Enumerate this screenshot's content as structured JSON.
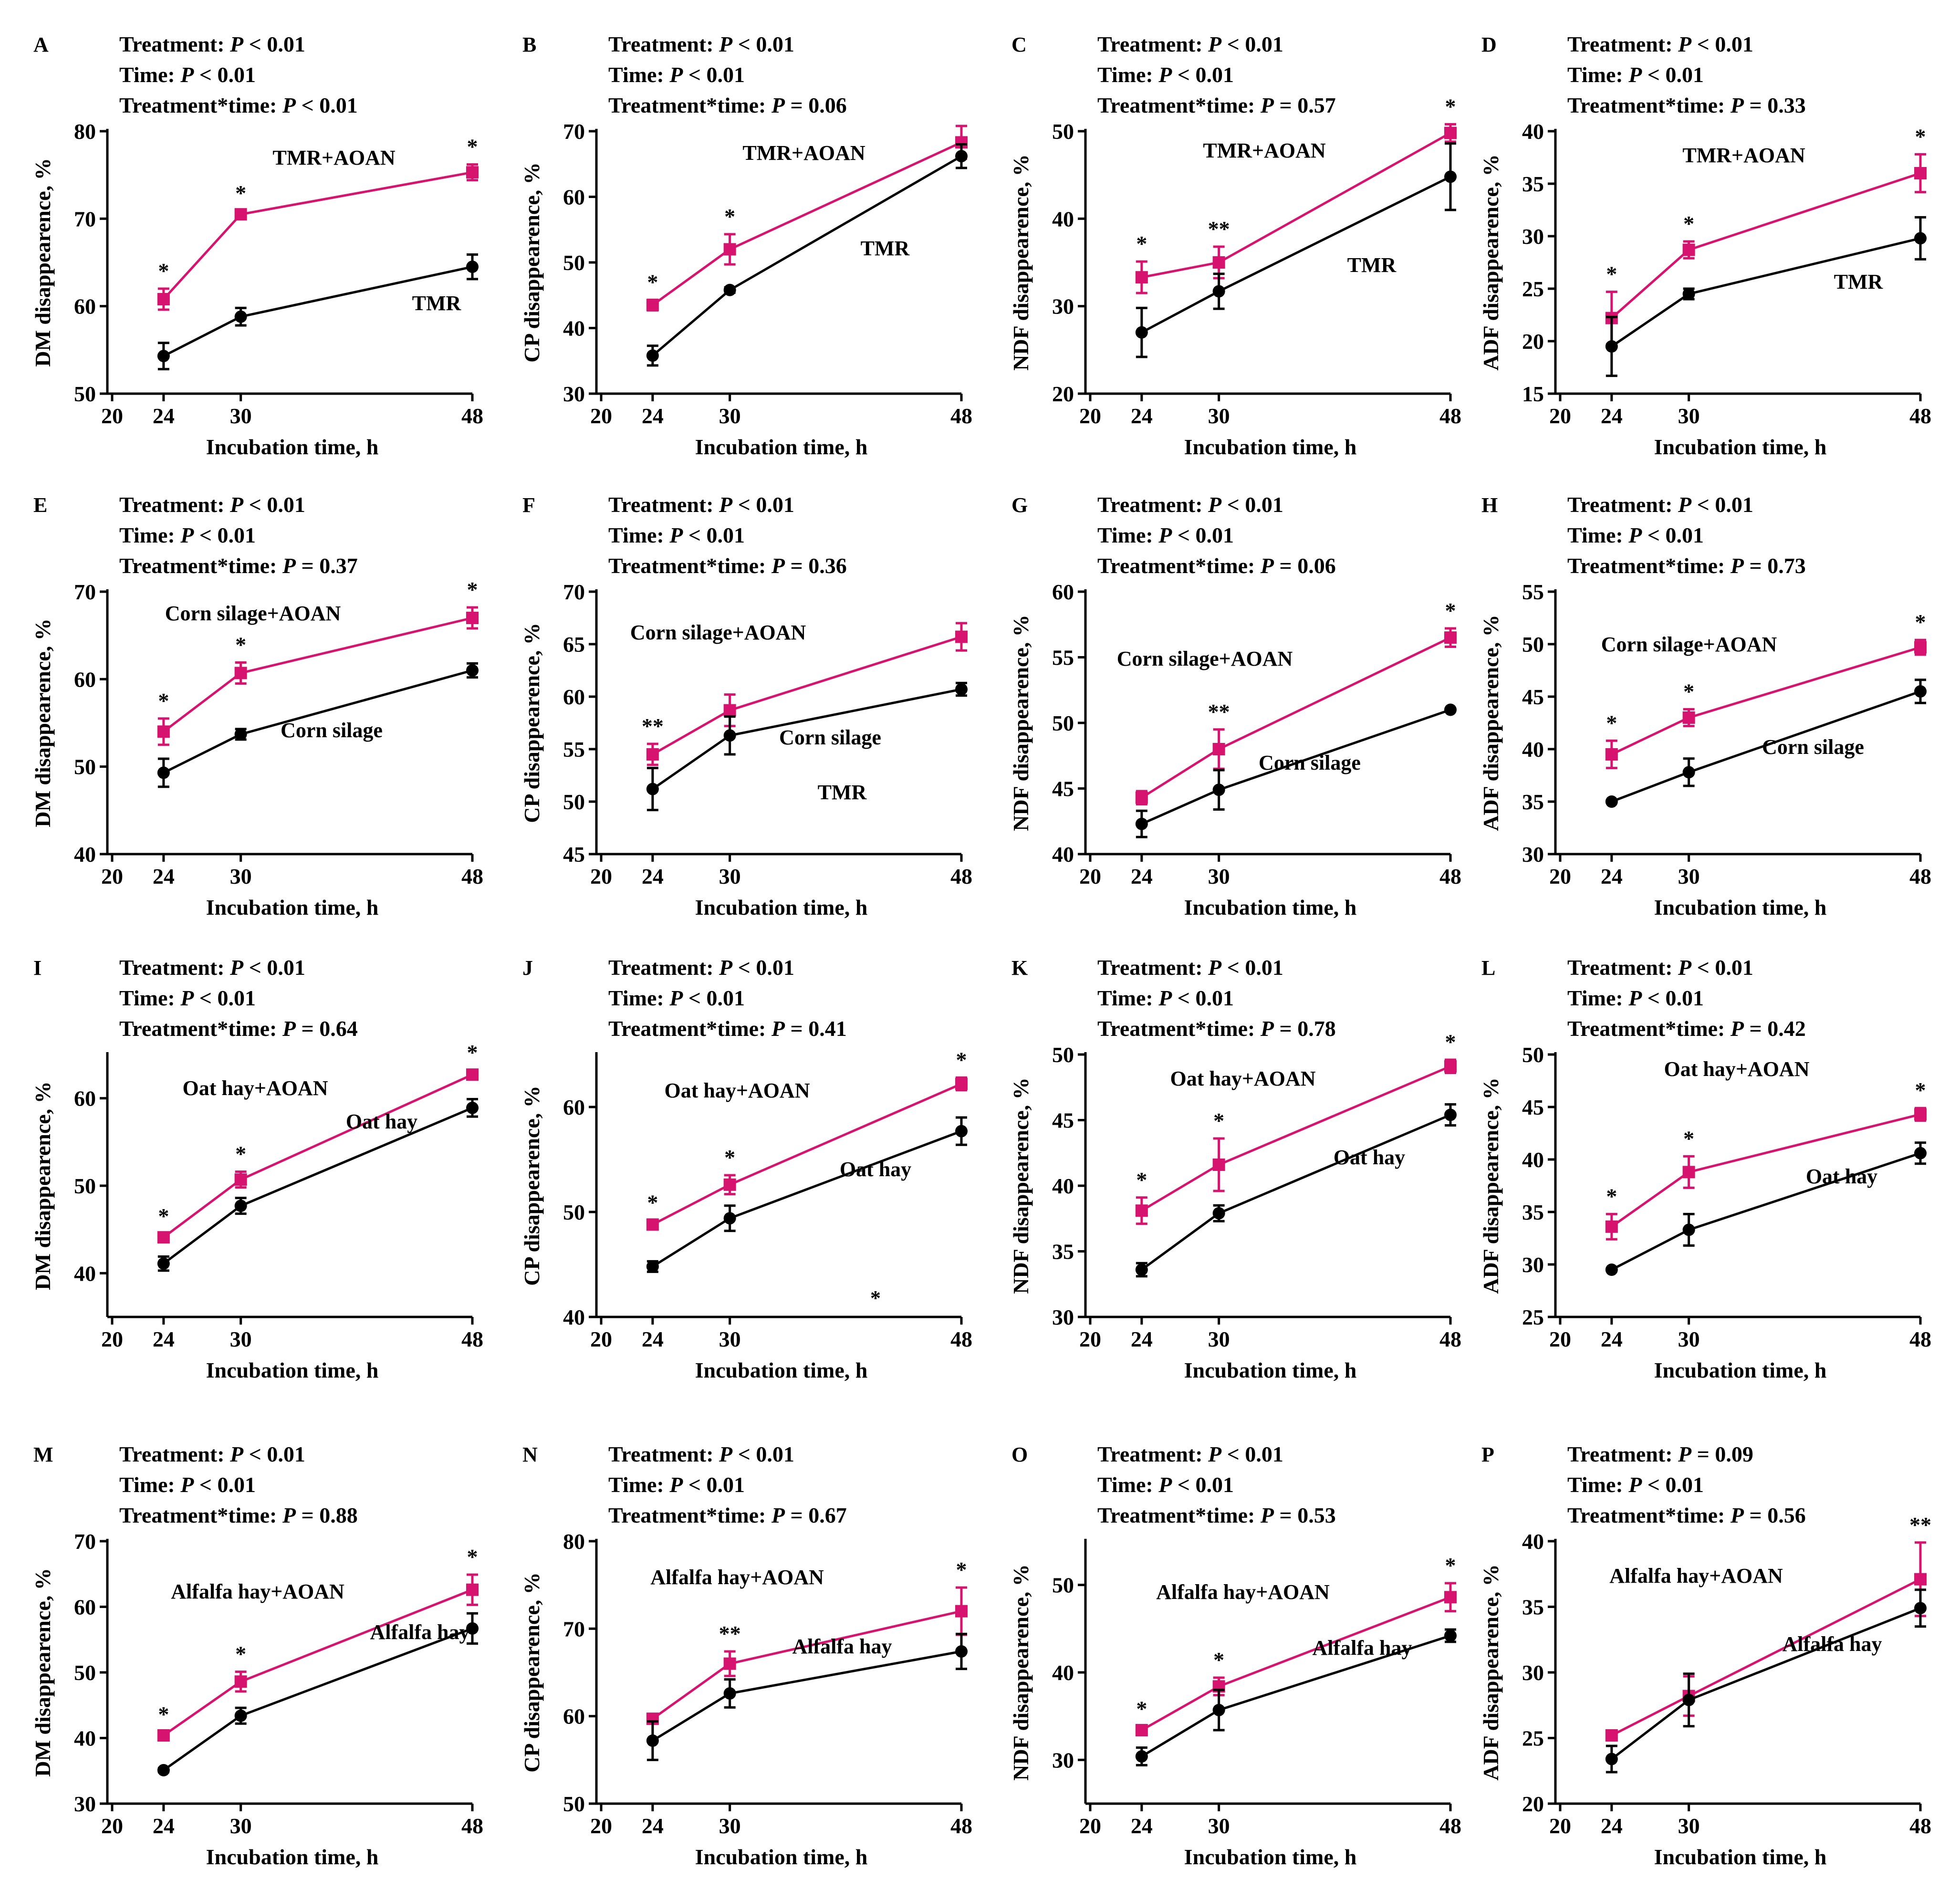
{
  "figure": {
    "x_label": "Incubation time, h",
    "stats_labels": {
      "treatment": "Treatment: ",
      "time": "Time: ",
      "interaction": "Treatment*time: "
    },
    "colors": {
      "aoan": "#d6136e",
      "control": "#000000"
    }
  },
  "chart_data": [
    {
      "letter": "A",
      "type": "line",
      "ylabel": "DM disappearence, %",
      "ylim": [
        50,
        80
      ],
      "yticks": [
        50,
        60,
        70,
        80
      ],
      "xlim": [
        20,
        48
      ],
      "xticks": [
        20,
        24,
        30,
        48
      ],
      "x": [
        24,
        30,
        48
      ],
      "stats": {
        "treatment": "P < 0.01",
        "time": "P < 0.01",
        "interaction": "P < 0.01"
      },
      "series": [
        {
          "name": "TMR+AOAN",
          "values": [
            60.8,
            70.5,
            75.3
          ],
          "err": [
            1.2,
            0.4,
            0.9
          ],
          "sig": [
            "*",
            "*",
            "*"
          ]
        },
        {
          "name": "TMR",
          "values": [
            54.3,
            58.8,
            64.5
          ],
          "err": [
            1.5,
            1.0,
            1.4
          ]
        }
      ]
    },
    {
      "letter": "B",
      "type": "line",
      "ylabel": "CP disappearence, %",
      "ylim": [
        30,
        70
      ],
      "yticks": [
        30,
        40,
        50,
        60,
        70
      ],
      "xlim": [
        20,
        48
      ],
      "xticks": [
        20,
        24,
        30,
        48
      ],
      "x": [
        24,
        30,
        48
      ],
      "stats": {
        "treatment": "P < 0.01",
        "time": "P < 0.01",
        "interaction": "P = 0.06"
      },
      "series": [
        {
          "name": "TMR+AOAN",
          "values": [
            43.5,
            52.0,
            68.3
          ],
          "err": [
            0.8,
            2.3,
            2.5
          ],
          "sig": [
            "*",
            "*",
            ""
          ]
        },
        {
          "name": "TMR",
          "values": [
            35.8,
            45.8,
            66.2
          ],
          "err": [
            1.5,
            0.4,
            1.8
          ]
        }
      ]
    },
    {
      "letter": "C",
      "type": "line",
      "ylabel": "NDF disappearence, %",
      "ylim": [
        20,
        50
      ],
      "yticks": [
        20,
        30,
        40,
        50
      ],
      "xlim": [
        20,
        48
      ],
      "xticks": [
        20,
        24,
        30,
        48
      ],
      "x": [
        24,
        30,
        48
      ],
      "stats": {
        "treatment": "P < 0.01",
        "time": "P < 0.01",
        "interaction": "P = 0.57"
      },
      "series": [
        {
          "name": "TMR+AOAN",
          "values": [
            33.3,
            35.0,
            49.8
          ],
          "err": [
            1.8,
            1.8,
            1.0
          ],
          "sig": [
            "*",
            "**",
            "*"
          ]
        },
        {
          "name": "TMR",
          "values": [
            27.0,
            31.7,
            44.8
          ],
          "err": [
            2.8,
            2.0,
            3.8
          ]
        }
      ]
    },
    {
      "letter": "D",
      "type": "line",
      "ylabel": "ADF disappearence, %",
      "ylim": [
        15,
        40
      ],
      "yticks": [
        15,
        20,
        25,
        30,
        35,
        40
      ],
      "xlim": [
        20,
        48
      ],
      "xticks": [
        20,
        24,
        30,
        48
      ],
      "x": [
        24,
        30,
        48
      ],
      "stats": {
        "treatment": "P < 0.01",
        "time": "P < 0.01",
        "interaction": "P = 0.33"
      },
      "series": [
        {
          "name": "TMR+AOAN",
          "values": [
            22.2,
            28.7,
            36.0
          ],
          "err": [
            2.5,
            0.8,
            1.8
          ],
          "sig": [
            "*",
            "*",
            "*"
          ]
        },
        {
          "name": "TMR",
          "values": [
            19.5,
            24.5,
            29.8
          ],
          "err": [
            2.8,
            0.5,
            2.0
          ]
        }
      ]
    },
    {
      "letter": "E",
      "type": "line",
      "ylabel": "DM disappearence, %",
      "ylim": [
        40,
        70
      ],
      "yticks": [
        40,
        50,
        60,
        70
      ],
      "xlim": [
        20,
        48
      ],
      "xticks": [
        20,
        24,
        30,
        48
      ],
      "x": [
        24,
        30,
        48
      ],
      "stats": {
        "treatment": "P < 0.01",
        "time": "P < 0.01",
        "interaction": "P = 0.37"
      },
      "series": [
        {
          "name": "Corn silage+AOAN",
          "values": [
            54.0,
            60.7,
            67.0
          ],
          "err": [
            1.5,
            1.2,
            1.2
          ],
          "sig": [
            "*",
            "*",
            "*"
          ]
        },
        {
          "name": "Corn silage",
          "values": [
            49.3,
            53.7,
            61.0
          ],
          "err": [
            1.6,
            0.6,
            0.8
          ]
        }
      ]
    },
    {
      "letter": "F",
      "type": "line",
      "ylabel": "CP disappearence, %",
      "ylim": [
        45,
        70
      ],
      "yticks": [
        45,
        50,
        55,
        60,
        65,
        70
      ],
      "xlim": [
        20,
        48
      ],
      "xticks": [
        20,
        24,
        30,
        48
      ],
      "x": [
        24,
        30,
        48
      ],
      "stats": {
        "treatment": "P < 0.01",
        "time": "P < 0.01",
        "interaction": "P = 0.36"
      },
      "series": [
        {
          "name": "Corn silage+AOAN",
          "values": [
            54.5,
            58.7,
            65.7
          ],
          "err": [
            1.0,
            1.5,
            1.3
          ],
          "sig": [
            "**",
            "",
            ""
          ]
        },
        {
          "name": "Corn silage",
          "values": [
            51.2,
            56.3,
            60.7
          ],
          "err": [
            2.0,
            1.8,
            0.6
          ]
        }
      ]
    },
    {
      "letter": "G",
      "type": "line",
      "ylabel": "NDF disappearence, %",
      "ylim": [
        40,
        60
      ],
      "yticks": [
        40,
        45,
        50,
        55,
        60
      ],
      "xlim": [
        20,
        48
      ],
      "xticks": [
        20,
        24,
        30,
        48
      ],
      "x": [
        24,
        30,
        48
      ],
      "stats": {
        "treatment": "P < 0.01",
        "time": "P < 0.01",
        "interaction": "P = 0.06"
      },
      "series": [
        {
          "name": "Corn silage+AOAN",
          "values": [
            44.3,
            48.0,
            56.5
          ],
          "err": [
            0.5,
            1.5,
            0.7
          ],
          "sig": [
            "",
            "**",
            "*"
          ]
        },
        {
          "name": "Corn silage",
          "values": [
            42.3,
            44.9,
            51.0
          ],
          "err": [
            1.0,
            1.5,
            0.1
          ]
        }
      ]
    },
    {
      "letter": "H",
      "type": "line",
      "ylabel": "ADF disappearence, %",
      "ylim": [
        30,
        55
      ],
      "yticks": [
        30,
        35,
        40,
        45,
        50,
        55
      ],
      "xlim": [
        20,
        48
      ],
      "xticks": [
        20,
        24,
        30,
        48
      ],
      "x": [
        24,
        30,
        48
      ],
      "stats": {
        "treatment": "P < 0.01",
        "time": "P < 0.01",
        "interaction": "P = 0.73"
      },
      "series": [
        {
          "name": "Corn silage+AOAN",
          "values": [
            39.5,
            43.0,
            49.7
          ],
          "err": [
            1.3,
            0.8,
            0.7
          ],
          "sig": [
            "*",
            "*",
            "*"
          ]
        },
        {
          "name": "Corn silage",
          "values": [
            35.0,
            37.8,
            45.5
          ],
          "err": [
            0.1,
            1.3,
            1.1
          ]
        }
      ]
    },
    {
      "letter": "I",
      "type": "line",
      "ylabel": "DM disappearence, %",
      "ylim": [
        35,
        65
      ],
      "yticks": [
        40,
        50,
        60
      ],
      "xlim": [
        20,
        48
      ],
      "xticks": [
        20,
        24,
        30,
        48
      ],
      "x": [
        24,
        30,
        48
      ],
      "stats": {
        "treatment": "P < 0.01",
        "time": "P < 0.01",
        "interaction": "P = 0.64"
      },
      "series": [
        {
          "name": "Oat hay+AOAN",
          "values": [
            44.1,
            50.7,
            62.7
          ],
          "err": [
            0.4,
            0.9,
            0.5
          ],
          "sig": [
            "*",
            "*",
            "*"
          ]
        },
        {
          "name": "Oat hay",
          "values": [
            41.1,
            47.7,
            58.9
          ],
          "err": [
            0.8,
            0.9,
            1.0
          ]
        }
      ]
    },
    {
      "letter": "J",
      "type": "line",
      "ylabel": "CP disappearence, %",
      "ylim": [
        40,
        65
      ],
      "yticks": [
        40,
        50,
        60
      ],
      "xlim": [
        20,
        48
      ],
      "xticks": [
        20,
        24,
        30,
        48
      ],
      "x": [
        24,
        30,
        48
      ],
      "stats": {
        "treatment": "P < 0.01",
        "time": "P < 0.01",
        "interaction": "P = 0.41"
      },
      "series": [
        {
          "name": "Oat hay+AOAN",
          "values": [
            48.8,
            52.6,
            62.2
          ],
          "err": [
            0.4,
            0.9,
            0.6
          ],
          "sig": [
            "*",
            "*",
            "*"
          ]
        },
        {
          "name": "Oat hay",
          "values": [
            44.8,
            49.4,
            57.7
          ],
          "err": [
            0.5,
            1.2,
            1.3
          ]
        }
      ]
    },
    {
      "letter": "K",
      "type": "line",
      "ylabel": "NDF disappearence, %",
      "ylim": [
        30,
        50
      ],
      "yticks": [
        30,
        35,
        40,
        45,
        50
      ],
      "xlim": [
        20,
        48
      ],
      "xticks": [
        20,
        24,
        30,
        48
      ],
      "x": [
        24,
        30,
        48
      ],
      "stats": {
        "treatment": "P < 0.01",
        "time": "P < 0.01",
        "interaction": "P = 0.78"
      },
      "series": [
        {
          "name": "Oat hay+AOAN",
          "values": [
            38.1,
            41.6,
            49.1
          ],
          "err": [
            1.0,
            2.0,
            0.5
          ],
          "sig": [
            "*",
            "*",
            "*"
          ]
        },
        {
          "name": "Oat hay",
          "values": [
            33.6,
            37.9,
            45.4
          ],
          "err": [
            0.5,
            0.6,
            0.8
          ]
        }
      ]
    },
    {
      "letter": "L",
      "type": "line",
      "ylabel": "ADF disappearence, %",
      "ylim": [
        25,
        50
      ],
      "yticks": [
        25,
        30,
        35,
        40,
        45,
        50
      ],
      "xlim": [
        20,
        48
      ],
      "xticks": [
        20,
        24,
        30,
        48
      ],
      "x": [
        24,
        30,
        48
      ],
      "stats": {
        "treatment": "P < 0.01",
        "time": "P < 0.01",
        "interaction": "P = 0.42"
      },
      "series": [
        {
          "name": "Oat hay+AOAN",
          "values": [
            33.6,
            38.8,
            44.3
          ],
          "err": [
            1.2,
            1.5,
            0.6
          ],
          "sig": [
            "*",
            "*",
            "*"
          ]
        },
        {
          "name": "Oat hay",
          "values": [
            29.5,
            33.3,
            40.6
          ],
          "err": [
            0.1,
            1.5,
            1.0
          ]
        }
      ]
    },
    {
      "letter": "M",
      "type": "line",
      "ylabel": "DM disappearence, %",
      "ylim": [
        30,
        70
      ],
      "yticks": [
        30,
        40,
        50,
        60,
        70
      ],
      "xlim": [
        20,
        48
      ],
      "xticks": [
        20,
        24,
        30,
        48
      ],
      "x": [
        24,
        30,
        48
      ],
      "stats": {
        "treatment": "P < 0.01",
        "time": "P < 0.01",
        "interaction": "P = 0.88"
      },
      "series": [
        {
          "name": "Alfalfa hay+AOAN",
          "values": [
            40.4,
            48.6,
            62.6
          ],
          "err": [
            0.5,
            1.5,
            2.3
          ],
          "sig": [
            "*",
            "*",
            "*"
          ]
        },
        {
          "name": "Alfalfa hay",
          "values": [
            35.1,
            43.4,
            56.7
          ],
          "err": [
            0.3,
            1.2,
            2.3
          ]
        }
      ]
    },
    {
      "letter": "N",
      "type": "line",
      "ylabel": "CP disappearence, %",
      "ylim": [
        50,
        80
      ],
      "yticks": [
        50,
        60,
        70,
        80
      ],
      "xlim": [
        20,
        48
      ],
      "xticks": [
        20,
        24,
        30,
        48
      ],
      "x": [
        24,
        30,
        48
      ],
      "stats": {
        "treatment": "P < 0.01",
        "time": "P < 0.01",
        "interaction": "P = 0.67"
      },
      "series": [
        {
          "name": "Alfalfa hay+AOAN",
          "values": [
            59.7,
            66.0,
            72.0
          ],
          "err": [
            0.3,
            1.4,
            2.7
          ],
          "sig": [
            "",
            "**",
            "*"
          ]
        },
        {
          "name": "Alfalfa hay",
          "values": [
            57.2,
            62.6,
            67.4
          ],
          "err": [
            2.2,
            1.6,
            2.0
          ]
        }
      ]
    },
    {
      "letter": "O",
      "type": "line",
      "ylabel": "NDF disappearence, %",
      "ylim": [
        25,
        55
      ],
      "yticks": [
        30,
        40,
        50
      ],
      "xlim": [
        20,
        48
      ],
      "xticks": [
        20,
        24,
        30,
        48
      ],
      "x": [
        24,
        30,
        48
      ],
      "stats": {
        "treatment": "P < 0.01",
        "time": "P < 0.01",
        "interaction": "P = 0.53"
      },
      "series": [
        {
          "name": "Alfalfa hay+AOAN",
          "values": [
            33.4,
            38.4,
            48.6
          ],
          "err": [
            0.4,
            1.0,
            1.6
          ],
          "sig": [
            "*",
            "*",
            "*"
          ]
        },
        {
          "name": "Alfalfa hay",
          "values": [
            30.4,
            35.7,
            44.2
          ],
          "err": [
            1.0,
            2.3,
            0.7
          ]
        }
      ]
    },
    {
      "letter": "P",
      "type": "line",
      "ylabel": "ADF disappearence, %",
      "ylim": [
        20,
        40
      ],
      "yticks": [
        20,
        25,
        30,
        35,
        40
      ],
      "xlim": [
        20,
        48
      ],
      "xticks": [
        20,
        24,
        30,
        48
      ],
      "x": [
        24,
        30,
        48
      ],
      "stats": {
        "treatment": "P = 0.09",
        "time": "P < 0.01",
        "interaction": "P = 0.56"
      },
      "series": [
        {
          "name": "Alfalfa hay+AOAN",
          "values": [
            25.2,
            28.2,
            37.1
          ],
          "err": [
            0.3,
            1.5,
            2.8
          ],
          "sig": [
            "",
            "",
            "**"
          ]
        },
        {
          "name": "Alfalfa hay",
          "values": [
            23.4,
            27.9,
            34.9
          ],
          "err": [
            1.0,
            2.0,
            1.4
          ]
        }
      ]
    }
  ],
  "stray_annotations": [
    {
      "panel": "F",
      "text": "TMR"
    },
    {
      "panel": "J",
      "text": "*"
    }
  ]
}
